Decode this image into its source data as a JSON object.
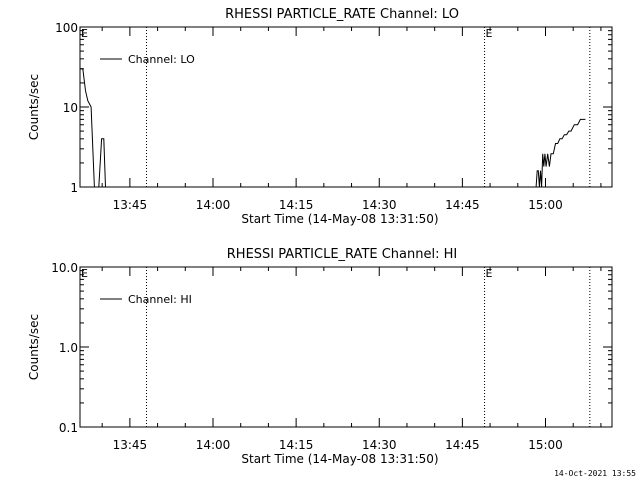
{
  "footer_date": "14-Oct-2021 13:55",
  "chart_data": [
    {
      "type": "line",
      "title": "RHESSI PARTICLE_RATE Channel: LO",
      "xlabel": "Start Time (14-May-08 13:31:50)",
      "ylabel": "Counts/sec",
      "yscale": "log",
      "ylim": [
        1,
        100
      ],
      "y_ticks": [
        1,
        10,
        100
      ],
      "y_tick_labels": [
        "1",
        "10",
        "100"
      ],
      "x_range": [
        "13:36",
        "15:12"
      ],
      "x_ticks": [
        "13:45",
        "14:00",
        "14:15",
        "14:30",
        "14:45",
        "15:00"
      ],
      "event_lines": [
        "13:48",
        "14:49",
        "15:08"
      ],
      "event_markers": [
        {
          "time": "13:36",
          "label": "E"
        },
        {
          "time": "14:49",
          "label": "E"
        }
      ],
      "legend_position": "top-left",
      "series": [
        {
          "name": "Channel: LO",
          "x": [
            "13:36.0",
            "13:36.5",
            "13:37.0",
            "13:37.4",
            "13:38.0",
            "13:38.6",
            "13:39.4",
            "13:39.9",
            "13:40.3",
            "13:40.6",
            "14:58.3",
            "14:58.5",
            "14:58.7",
            "14:58.9",
            "14:59.1",
            "14:59.3",
            "14:59.5",
            "14:59.7",
            "14:59.9",
            "15:00.1",
            "15:00.4",
            "15:00.7",
            "15:01.0",
            "15:01.4",
            "15:01.8",
            "15:02.2",
            "15:02.6",
            "15:03.0",
            "15:03.4",
            "15:03.8",
            "15:04.2",
            "15:04.6",
            "15:05.2",
            "15:05.8",
            "15:06.3",
            "15:06.8",
            "15:07.2"
          ],
          "y": [
            30,
            30,
            16,
            12,
            10,
            1,
            1,
            4,
            4,
            1,
            1,
            1.6,
            1.6,
            1,
            1.6,
            1,
            2.6,
            1.8,
            2.6,
            1.8,
            2.6,
            1.8,
            2.6,
            2.6,
            3.5,
            3.5,
            4,
            4,
            4.5,
            4.5,
            5,
            5,
            6,
            6,
            7,
            7,
            7
          ]
        }
      ]
    },
    {
      "type": "line",
      "title": "RHESSI PARTICLE_RATE Channel: HI",
      "xlabel": "Start Time (14-May-08 13:31:50)",
      "ylabel": "Counts/sec",
      "yscale": "log",
      "ylim": [
        0.1,
        10
      ],
      "y_ticks": [
        0.1,
        1,
        10
      ],
      "y_tick_labels": [
        "0.1",
        "1.0",
        "10.0"
      ],
      "x_range": [
        "13:36",
        "15:12"
      ],
      "x_ticks": [
        "13:45",
        "14:00",
        "14:15",
        "14:30",
        "14:45",
        "15:00"
      ],
      "event_lines": [
        "13:48",
        "14:49",
        "15:08"
      ],
      "event_markers": [
        {
          "time": "13:36",
          "label": "E"
        },
        {
          "time": "14:49",
          "label": "E"
        }
      ],
      "legend_position": "top-left",
      "series": [
        {
          "name": "Channel: HI",
          "x": [],
          "y": []
        }
      ]
    }
  ]
}
